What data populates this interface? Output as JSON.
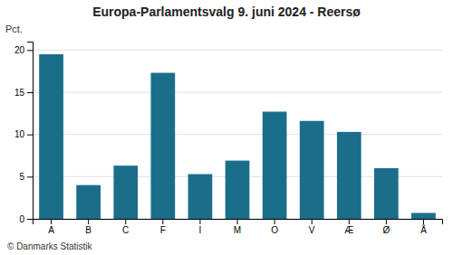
{
  "chart_data": {
    "type": "bar",
    "title": "Europa-Parlamentsvalg 9. juni 2024 - Reersø",
    "ylabel": "Pct.",
    "annotations": [
      "© Danmarks Statistik"
    ],
    "categories": [
      "A",
      "B",
      "C",
      "F",
      "I",
      "M",
      "O",
      "V",
      "Æ",
      "Ø",
      "Å"
    ],
    "values": [
      19.5,
      4.0,
      6.3,
      17.3,
      5.3,
      6.9,
      12.7,
      11.6,
      10.3,
      6.0,
      0.7
    ],
    "color": "#1a6e8a",
    "ylim": [
      0,
      21
    ],
    "yticks": [
      0,
      5,
      10,
      15,
      20
    ],
    "grid": true
  }
}
